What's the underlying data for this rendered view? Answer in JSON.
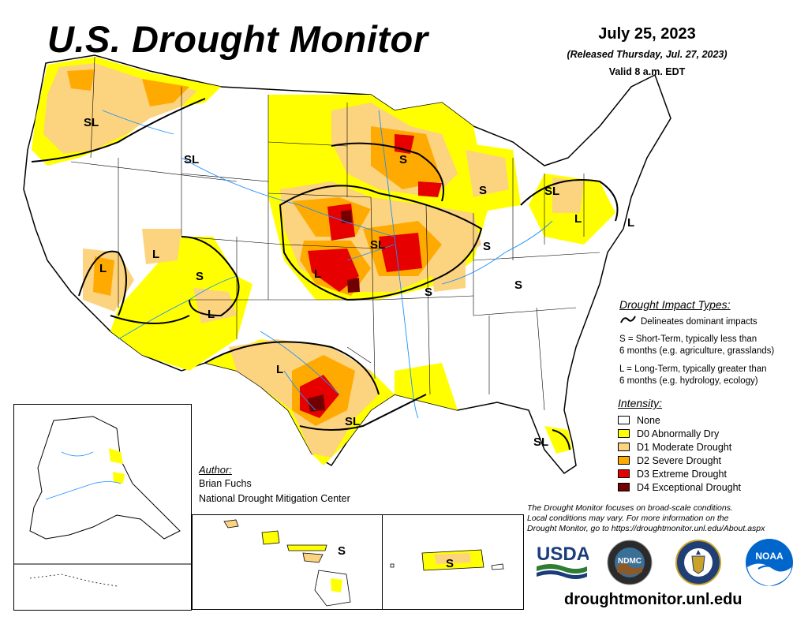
{
  "header": {
    "title": "U.S. Drought Monitor",
    "date": "July 25, 2023",
    "released": "(Released Thursday, Jul. 27, 2023)",
    "valid": "Valid 8 a.m. EDT"
  },
  "impact_legend": {
    "title": "Drought Impact Types:",
    "line_item": "Delineates dominant impacts",
    "short_term": "S = Short-Term, typically less than",
    "short_term_2": "6 months (e.g. agriculture, grasslands)",
    "long_term": "L = Long-Term, typically greater than",
    "long_term_2": "6 months (e.g. hydrology, ecology)"
  },
  "intensity_legend": {
    "title": "Intensity:",
    "items": [
      {
        "label": "None",
        "color": "#ffffff"
      },
      {
        "label": "D0 Abnormally Dry",
        "color": "#ffff00"
      },
      {
        "label": "D1 Moderate Drought",
        "color": "#fcd37f"
      },
      {
        "label": "D2 Severe Drought",
        "color": "#ffaa00"
      },
      {
        "label": "D3 Extreme Drought",
        "color": "#e60000"
      },
      {
        "label": "D4 Exceptional Drought",
        "color": "#730000"
      }
    ]
  },
  "author": {
    "label": "Author:",
    "name": "Brian Fuchs",
    "org": "National Drought Mitigation Center"
  },
  "disclaimer": {
    "line1": "The Drought Monitor focuses on broad-scale conditions.",
    "line2": "Local conditions may vary. For more information on the",
    "line3": "Drought Monitor, go to https://droughtmonitor.unl.edu/About.aspx"
  },
  "website": "droughtmonitor.unl.edu",
  "logos": {
    "usda": "USDA",
    "ndmc": "NDMC",
    "noaa": "NOAA"
  },
  "map_labels": {
    "sl_nw": "SL",
    "sl_mt": "SL",
    "s_wi": "S",
    "s_mi": "S",
    "sl_ny": "SL",
    "l_pa": "L",
    "l_ne": "L",
    "l_ut": "L",
    "l_az": "L",
    "s_co": "S",
    "l_nm": "L",
    "l_ks": "L",
    "sl_mo": "SL",
    "s_il": "S",
    "s_ar": "S",
    "s_ky": "S",
    "l_tx": "L",
    "sl_tx": "SL",
    "sl_fl": "SL",
    "s_hi": "S",
    "s_pr": "S"
  }
}
